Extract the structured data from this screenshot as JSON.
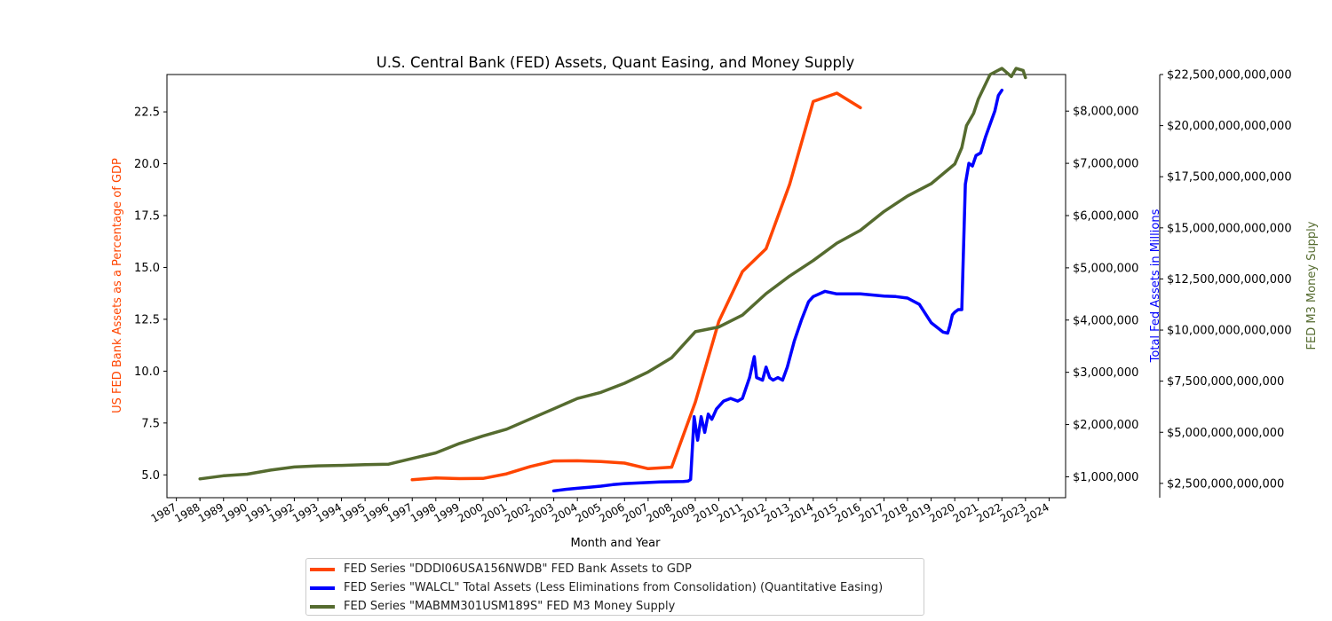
{
  "chart_data": {
    "type": "line",
    "title": "U.S. Central Bank (FED) Assets, Quant Easing, and Money Supply",
    "xlabel": "Month and Year",
    "x_ticks": [
      "1987",
      "1988",
      "1989",
      "1990",
      "1991",
      "1992",
      "1993",
      "1994",
      "1995",
      "1996",
      "1997",
      "1998",
      "1999",
      "2000",
      "2001",
      "2002",
      "2003",
      "2004",
      "2005",
      "2006",
      "2007",
      "2008",
      "2009",
      "2010",
      "2011",
      "2012",
      "2013",
      "2014",
      "2015",
      "2016",
      "2017",
      "2018",
      "2019",
      "2020",
      "2021",
      "2022",
      "2023",
      "2024"
    ],
    "xlim": [
      1986.6,
      2024.7
    ],
    "axes": {
      "left": {
        "label": "US FED Bank Assets as a Percentage of GDP",
        "color": "#ff4500",
        "ylim": [
          3.9,
          24.3
        ],
        "ticks": [
          5.0,
          7.5,
          10.0,
          12.5,
          15.0,
          17.5,
          20.0,
          22.5
        ],
        "tick_labels": [
          "5.0",
          "7.5",
          "10.0",
          "12.5",
          "15.0",
          "17.5",
          "20.0",
          "22.5"
        ]
      },
      "right1": {
        "label": "Total Fed Assets in Millions",
        "color": "#0000ff",
        "ylim": [
          600000,
          8700000
        ],
        "ticks": [
          1000000,
          2000000,
          3000000,
          4000000,
          5000000,
          6000000,
          7000000,
          8000000
        ],
        "tick_labels": [
          "$1,000,000",
          "$2,000,000",
          "$3,000,000",
          "$4,000,000",
          "$5,000,000",
          "$6,000,000",
          "$7,000,000",
          "$8,000,000"
        ]
      },
      "right2": {
        "label": "FED M3 Money Supply",
        "color": "#556b2f",
        "ylim": [
          1800000000000,
          22500000000000
        ],
        "ticks": [
          2500000000000,
          5000000000000,
          7500000000000,
          10000000000000,
          12500000000000,
          15000000000000,
          17500000000000,
          20000000000000,
          22500000000000
        ],
        "tick_labels": [
          "$2,500,000,000,000",
          "$5,000,000,000,000",
          "$7,500,000,000,000",
          "$10,000,000,000,000",
          "$12,500,000,000,000",
          "$15,000,000,000,000",
          "$17,500,000,000,000",
          "$20,000,000,000,000",
          "$22,500,000,000,000"
        ]
      }
    },
    "series": [
      {
        "name": "FED Series \"DDDI06USA156NWDB\" FED Bank Assets to GDP",
        "axis": "left",
        "color": "#ff4500",
        "x": [
          1997,
          1998,
          1999,
          2000,
          2001,
          2002,
          2003,
          2004,
          2005,
          2006,
          2007,
          2008,
          2009,
          2010,
          2011,
          2012,
          2013,
          2014,
          2015,
          2016
        ],
        "y": [
          4.77,
          4.85,
          4.82,
          4.83,
          5.05,
          5.4,
          5.67,
          5.68,
          5.64,
          5.57,
          5.3,
          5.37,
          8.5,
          12.4,
          14.8,
          15.9,
          19.0,
          23.0,
          23.4,
          22.7
        ]
      },
      {
        "name": "FED Series \"WALCL\" Total Assets (Less Eliminations from Consolidation) (Quantitative Easing)",
        "axis": "right1",
        "color": "#0000ff",
        "x": [
          2003.0,
          2003.5,
          2004.0,
          2004.5,
          2005.0,
          2005.5,
          2006.0,
          2006.5,
          2007.0,
          2007.5,
          2008.0,
          2008.5,
          2008.7,
          2008.8,
          2008.95,
          2009.1,
          2009.25,
          2009.4,
          2009.55,
          2009.7,
          2009.9,
          2010.2,
          2010.5,
          2010.8,
          2011.0,
          2011.3,
          2011.5,
          2011.6,
          2011.85,
          2012.0,
          2012.15,
          2012.3,
          2012.5,
          2012.7,
          2012.9,
          2013.2,
          2013.5,
          2013.8,
          2014.0,
          2014.5,
          2015.0,
          2015.5,
          2016.0,
          2016.5,
          2017.0,
          2017.5,
          2018.0,
          2018.5,
          2019.0,
          2019.5,
          2019.7,
          2019.8,
          2019.9,
          2020.0,
          2020.15,
          2020.3,
          2020.45,
          2020.6,
          2020.75,
          2020.9,
          2021.1,
          2021.3,
          2021.5,
          2021.7,
          2021.85,
          2022.0
        ],
        "y": [
          730000,
          760000,
          780000,
          800000,
          820000,
          850000,
          870000,
          880000,
          890000,
          900000,
          905000,
          910000,
          920000,
          950000,
          2150000,
          1700000,
          2150000,
          1850000,
          2200000,
          2100000,
          2300000,
          2450000,
          2500000,
          2450000,
          2500000,
          2900000,
          3300000,
          2900000,
          2850000,
          3100000,
          2900000,
          2850000,
          2900000,
          2850000,
          3100000,
          3600000,
          4000000,
          4350000,
          4450000,
          4550000,
          4500000,
          4500000,
          4500000,
          4480000,
          4460000,
          4450000,
          4420000,
          4300000,
          3950000,
          3770000,
          3750000,
          3900000,
          4100000,
          4150000,
          4200000,
          4200000,
          6600000,
          7000000,
          6950000,
          7150000,
          7200000,
          7500000,
          7750000,
          8000000,
          8300000,
          8400000
        ]
      },
      {
        "name": "FED Series \"MABMM301USM189S\" FED M3 Money Supply",
        "axis": "right2",
        "color": "#556b2f",
        "x": [
          1988,
          1989,
          1990,
          1991,
          1992,
          1993,
          1994,
          1995,
          1996,
          1997,
          1998,
          1999,
          2000,
          2001,
          2002,
          2003,
          2004,
          2005,
          2006,
          2007,
          2008,
          2009,
          2010,
          2011,
          2012,
          2013,
          2014,
          2015,
          2016,
          2017,
          2018,
          2019,
          2020,
          2020.3,
          2020.5,
          2020.8,
          2021,
          2021.5,
          2022,
          2022.4,
          2022.6,
          2022.9,
          2023.0
        ],
        "y": [
          2720000000000,
          2870000000000,
          2950000000000,
          3150000000000,
          3300000000000,
          3360000000000,
          3380000000000,
          3420000000000,
          3440000000000,
          3720000000000,
          3990000000000,
          4450000000000,
          4820000000000,
          5150000000000,
          5650000000000,
          6150000000000,
          6650000000000,
          6950000000000,
          7400000000000,
          7950000000000,
          8650000000000,
          9920000000000,
          10150000000000,
          10730000000000,
          11780000000000,
          12640000000000,
          13400000000000,
          14250000000000,
          14880000000000,
          15800000000000,
          16560000000000,
          17160000000000,
          18120000000000,
          18920000000000,
          20000000000000,
          20600000000000,
          21300000000000,
          22500000000000,
          22800000000000,
          22400000000000,
          22800000000000,
          22700000000000,
          22350000000000
        ]
      }
    ],
    "grid": false,
    "legend": "bottom-center"
  }
}
